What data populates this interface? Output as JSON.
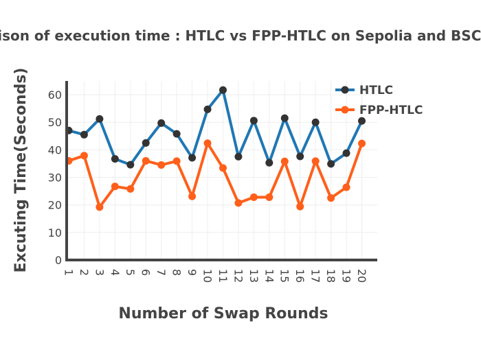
{
  "chart_data": {
    "type": "line",
    "title": "Comparison of execution time : HTLC vs FPP-HTLC on Sepolia and BSC Testnet",
    "xlabel": "Number of Swap Rounds",
    "ylabel": "Excuting Time(Seconds)",
    "x": [
      1,
      2,
      3,
      4,
      5,
      6,
      7,
      8,
      9,
      10,
      11,
      12,
      13,
      14,
      15,
      16,
      17,
      18,
      19,
      20
    ],
    "xlim": [
      1,
      21
    ],
    "ylim": [
      0,
      65
    ],
    "yticks": [
      0,
      10,
      20,
      30,
      40,
      50,
      60
    ],
    "grid": true,
    "legend_position": "top-right",
    "series": [
      {
        "name": "HTLC",
        "color": "#1f77b4",
        "values": [
          47,
          45.5,
          51.2,
          36.7,
          34.6,
          42.5,
          49.7,
          45.8,
          37.1,
          54.7,
          61.7,
          37.5,
          50.6,
          35.3,
          51.5,
          37.6,
          50,
          34.9,
          38.8,
          50.5
        ]
      },
      {
        "name": "FPP-HTLC",
        "color": "#ff5f1a",
        "values": [
          36,
          37.9,
          19.2,
          26.7,
          25.8,
          36,
          34.5,
          35.9,
          23.1,
          42.4,
          33.4,
          20.7,
          22.8,
          22.8,
          35.8,
          19.4,
          35.9,
          22.5,
          26.4,
          42.3
        ]
      }
    ]
  }
}
